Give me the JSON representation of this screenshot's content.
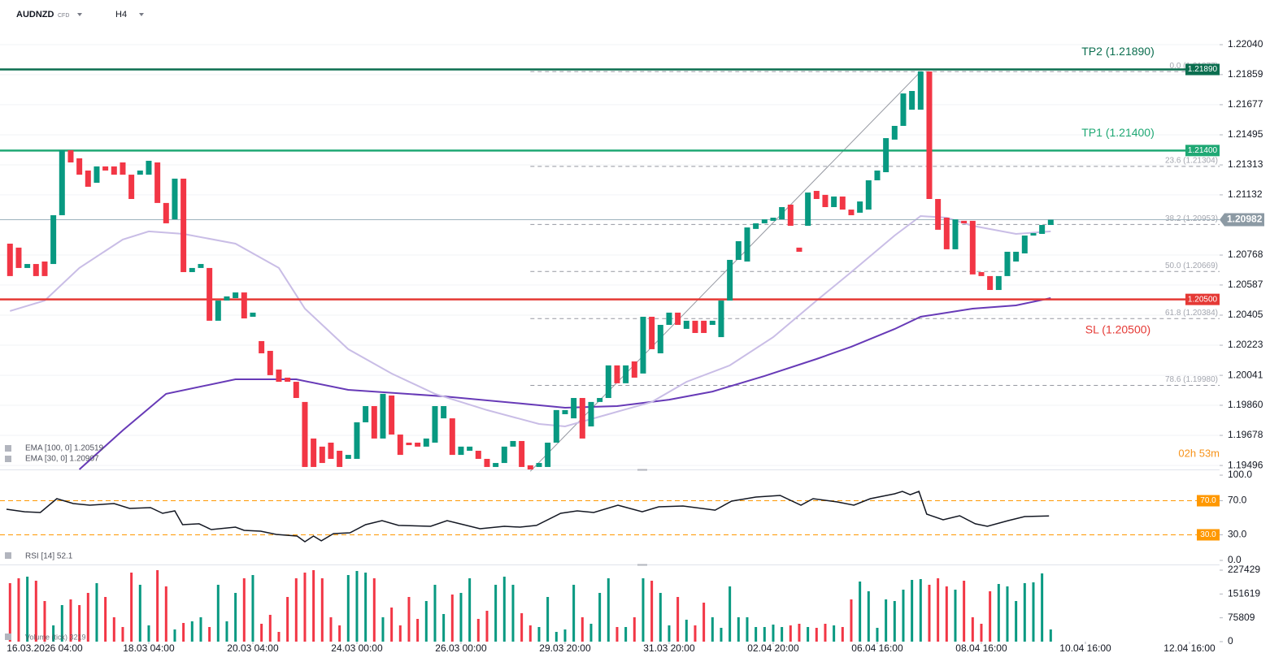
{
  "header": {
    "symbol": "AUDNZD",
    "market": "CFD",
    "timeframe": "H4"
  },
  "chart_data": [
    {
      "type": "candlestick",
      "up_color": "#089981",
      "down_color": "#f23645",
      "grid": true,
      "open": [
        1.20837,
        1.20813,
        1.2069,
        1.20714,
        1.20729,
        1.20714,
        1.21009,
        1.21402,
        1.21353,
        1.21279,
        1.21205,
        1.21304,
        1.21304,
        1.21328,
        1.21254,
        1.21254,
        1.21254,
        1.21328,
        1.21083,
        1.20984,
        1.2123,
        1.20665,
        1.2069,
        1.2069,
        1.20371,
        1.20493,
        1.20508,
        1.20542,
        1.20395,
        1.20248,
        1.20189,
        1.20076,
        1.20027,
        1.20002,
        1.1988,
        1.19659,
        1.1961,
        1.19634,
        1.19585,
        1.19536,
        1.19536,
        1.19757,
        1.19855,
        1.19659,
        1.19919,
        1.19683,
        1.19634,
        1.19634,
        1.1961,
        1.19634,
        1.19781,
        1.19781,
        1.1956,
        1.19585,
        1.19585,
        1.19536,
        1.19487,
        1.19511,
        1.1961,
        1.19644,
        1.19497,
        1.19487,
        1.19487,
        1.19634,
        1.19806,
        1.19781,
        1.19904,
        1.19732,
        1.1988,
        1.19904,
        1.20101,
        1.19993,
        1.20125,
        1.20052,
        1.20395,
        1.20174,
        1.20346,
        1.2042,
        1.20322,
        1.20371,
        1.20371,
        1.20346,
        1.20272,
        1.20493,
        1.20739,
        1.20729,
        1.20926,
        1.2096,
        1.20975,
        1.20984,
        1.21073,
        1.20813,
        1.20945,
        1.21156,
        1.21132,
        1.21058,
        1.21122,
        1.21043,
        1.21024,
        1.21043,
        1.2122,
        1.21269,
        1.21466,
        1.21549,
        1.21647,
        1.21647,
        1.21878,
        1.21107,
        1.20994,
        1.20803,
        1.20975,
        1.20975,
        1.20665,
        1.20641,
        1.20557,
        1.20641,
        1.20729,
        1.20778,
        1.20886,
        1.20896,
        1.2095
      ],
      "close": [
        1.20641,
        1.2069,
        1.20714,
        1.20641,
        1.20641,
        1.21009,
        1.21402,
        1.21328,
        1.21254,
        1.21181,
        1.21304,
        1.21279,
        1.21254,
        1.21254,
        1.21107,
        1.21279,
        1.21338,
        1.21083,
        1.2096,
        1.2123,
        1.20665,
        1.2069,
        1.20714,
        1.20371,
        1.20493,
        1.20518,
        1.20542,
        1.20385,
        1.2042,
        1.20174,
        1.20042,
        1.20002,
        1.20002,
        1.19904,
        1.19487,
        1.19487,
        1.19511,
        1.19536,
        1.19487,
        1.1956,
        1.19757,
        1.19855,
        1.19659,
        1.19929,
        1.19683,
        1.1956,
        1.19619,
        1.1961,
        1.19659,
        1.19855,
        1.19855,
        1.1956,
        1.1961,
        1.1961,
        1.19536,
        1.19487,
        1.19511,
        1.1961,
        1.19644,
        1.19487,
        1.19472,
        1.19511,
        1.19634,
        1.19831,
        1.19831,
        1.19904,
        1.19659,
        1.1988,
        1.19904,
        1.20101,
        1.19993,
        1.20101,
        1.20027,
        1.20395,
        1.20199,
        1.20346,
        1.2042,
        1.20346,
        1.20371,
        1.20297,
        1.20297,
        1.20371,
        1.20493,
        1.20739,
        1.20852,
        1.20935,
        1.2096,
        1.20984,
        1.20994,
        1.21058,
        1.20945,
        1.20788,
        1.21146,
        1.21107,
        1.21058,
        1.21122,
        1.21043,
        1.21009,
        1.21092,
        1.2122,
        1.21279,
        1.21475,
        1.21549,
        1.21745,
        1.2176,
        1.21878,
        1.21107,
        1.20921,
        1.20803,
        1.20984,
        1.2096,
        1.20651,
        1.20641,
        1.20557,
        1.20641,
        1.20788,
        1.20788,
        1.20886,
        1.20901,
        1.2095,
        1.20982
      ],
      "xlim": [
        -1.153,
        139.47
      ],
      "ylim": [
        1.19472,
        1.2231
      ],
      "xticks": [
        {
          "value": 4,
          "label": "16.03.2026 04:00"
        },
        {
          "value": 16,
          "label": "18.03 04:00"
        },
        {
          "value": 28,
          "label": "20.03 04:00"
        },
        {
          "value": 40,
          "label": "24.03 00:00"
        },
        {
          "value": 52,
          "label": "26.03 00:00"
        },
        {
          "value": 64,
          "label": "29.03 20:00"
        },
        {
          "value": 76,
          "label": "31.03 20:00"
        },
        {
          "value": 88,
          "label": "02.04 20:00"
        },
        {
          "value": 100,
          "label": "06.04 16:00"
        },
        {
          "value": 112,
          "label": "08.04 16:00"
        },
        {
          "value": 124,
          "label": "10.04 16:00"
        },
        {
          "value": 136,
          "label": "12.04 16:00"
        }
      ],
      "yticks": [
        {
          "value": 1.2204,
          "label": "1.22040"
        },
        1.21859,
        1.21677,
        1.21495,
        1.21313,
        1.21132,
        1.20768,
        1.20587,
        1.20405,
        1.20223,
        1.20041,
        {
          "value": 1.1986,
          "label": "1.19860"
        },
        1.19678,
        1.19496
      ],
      "series": [
        {
          "name": "EMA [100, 0] 1.20519",
          "color": "#673ab7",
          "x": [
            8,
            13,
            18,
            26,
            33,
            39,
            50,
            59,
            64,
            70,
            76,
            81,
            87,
            93,
            97,
            102,
            105,
            111,
            116,
            120
          ],
          "values": [
            1.19472,
            1.19708,
            1.19929,
            1.20017,
            1.20017,
            1.19953,
            1.19914,
            1.1987,
            1.19845,
            1.19855,
            1.19894,
            1.19943,
            1.20037,
            1.2014,
            1.20214,
            1.20321,
            1.20395,
            1.20444,
            1.20464,
            1.20508
          ]
        },
        {
          "name": "EMA [30, 0] 1.20907",
          "color": "#c9bde6",
          "x": [
            0,
            4,
            8,
            13,
            16,
            20,
            26,
            31,
            34,
            39,
            44,
            49,
            55,
            61,
            64,
            69,
            74,
            78,
            83,
            88,
            93,
            97,
            102,
            105,
            108,
            111,
            116,
            120
          ],
          "values": [
            1.2043,
            1.20493,
            1.2069,
            1.20862,
            1.20911,
            1.20896,
            1.20837,
            1.2069,
            1.20444,
            1.20199,
            1.20052,
            1.19929,
            1.19831,
            1.19747,
            1.19732,
            1.19806,
            1.1988,
            1.20002,
            1.20101,
            1.20272,
            1.20493,
            1.20665,
            1.20886,
            1.21004,
            1.20994,
            1.20945,
            1.20896,
            1.20911
          ]
        }
      ],
      "levels": [
        {
          "name": "TP2 (1.21890)",
          "price": {
            "value": 1.2189,
            "label": "1.21890"
          },
          "color": "#0b6e4f"
        },
        {
          "name": "TP1 (1.21400)",
          "price": {
            "value": 1.214,
            "label": "1.21400"
          },
          "color": "#1fa874"
        },
        {
          "name": "SL (1.20500)",
          "price": {
            "value": 1.205,
            "label": "1.20500"
          },
          "color": "#e53935"
        }
      ],
      "last_price": 1.20982,
      "fib": {
        "x": [
          60,
          105
        ],
        "values": [
          1.19461,
          1.21877
        ],
        "levels": [
          {
            "value": 1.21877,
            "label": "0.0 (1.21877)"
          },
          {
            "value": 1.21304,
            "label": "23.6 (1.21304)"
          },
          {
            "value": 1.20953,
            "label": "38.2 (1.20953)"
          },
          {
            "value": 1.20669,
            "label": "50.0 (1.20669)"
          },
          {
            "value": 1.20384,
            "label": "61.8 (1.20384)"
          },
          {
            "value": 1.1998,
            "label": "78.6 (1.19980)"
          }
        ]
      },
      "timer": "02h 53m"
    },
    {
      "type": "line",
      "name": "RSI [14] 52.1",
      "color": "#131722",
      "x": [
        -0.4,
        1.7,
        3.5,
        5.4,
        7.3,
        9.2,
        12,
        13.8,
        16.2,
        17.6,
        19,
        19.9,
        21.8,
        23.2,
        26,
        27,
        28.9,
        30.7,
        33.1,
        34,
        35,
        35.9,
        37.3,
        39.2,
        41,
        42.9,
        44.8,
        48.5,
        50.4,
        52.3,
        54.2,
        57,
        58.8,
        60.7,
        63.5,
        65.4,
        67.3,
        70.1,
        72.9,
        74.8,
        77.6,
        81.3,
        83.2,
        86,
        88.8,
        91.2,
        92.6,
        95.4,
        97.3,
        99.2,
        102,
        102.9,
        103.8,
        104.8,
        105.7,
        107.6,
        109.5,
        111.3,
        112.7,
        115.1,
        117,
        119.8
      ],
      "values": [
        60.0,
        57.1,
        56.2,
        72.4,
        66.7,
        64.8,
        66.7,
        61.0,
        61.9,
        55.2,
        58.1,
        41.9,
        42.9,
        36.2,
        39.0,
        35.2,
        34.3,
        30.5,
        28.6,
        21.9,
        28.6,
        22.9,
        31.4,
        32.4,
        41.9,
        46.7,
        41.0,
        40.0,
        46.7,
        41.9,
        37.1,
        40.0,
        39.0,
        41.0,
        55.2,
        58.1,
        56.2,
        64.8,
        57.1,
        62.9,
        63.8,
        59.0,
        69.5,
        74.3,
        76.2,
        64.8,
        72.4,
        68.6,
        64.8,
        72.4,
        78.1,
        81.0,
        77.1,
        81.0,
        54.3,
        47.6,
        52.4,
        42.9,
        40.0,
        46.7,
        51.4,
        52.1
      ],
      "xlim": [
        -1.153,
        139.47
      ],
      "ylim": [
        -4.8,
        104.8
      ],
      "yticks": [
        {
          "value": 100,
          "label": "100.0"
        },
        {
          "value": 70,
          "label": "70.0"
        },
        {
          "value": 30,
          "label": "30.0"
        },
        {
          "value": 0,
          "label": "0.0"
        }
      ],
      "bands": [
        {
          "value": 70,
          "label": "70.0"
        },
        {
          "value": 30,
          "label": "30.0"
        }
      ],
      "band_color": "#ff9800"
    },
    {
      "type": "bar",
      "name": "Volume (tick) 3219",
      "up_color": "#089981",
      "down_color": "#f23645",
      "values": [
        186077,
        201583,
        206752,
        193830,
        129220,
        51688,
        116298,
        134389,
        116298,
        155064,
        186077,
        142142,
        77532,
        46519,
        219674,
        180908,
        51688,
        227427,
        175739,
        38766,
        59441,
        64610,
        77532,
        46519,
        180908,
        64610,
        155064,
        201583,
        211921,
        56857,
        85285,
        31013,
        142142,
        201583,
        219674,
        227427,
        201583,
        77532,
        51688,
        211921,
        224843,
        219674,
        201583,
        77532,
        108545,
        51688,
        142142,
        72363,
        129220,
        180908,
        87870,
        149895,
        155064,
        201583,
        72363,
        98207,
        180908,
        206752,
        180908,
        90454,
        51688,
        46519,
        142142,
        31013,
        38766,
        180908,
        77532,
        56857,
        155064,
        201583,
        46519,
        46519,
        77532,
        201583,
        193830,
        155064,
        51688,
        142142,
        69779,
        51688,
        124051,
        77532,
        43935,
        175739,
        77532,
        77532,
        46519,
        46519,
        54272,
        46519,
        51688,
        56857,
        46519,
        43935,
        56857,
        51688,
        46519,
        134389,
        191246,
        160233,
        43935,
        134389,
        129220,
        165402,
        196414,
        198999,
        180908,
        201583,
        175739,
        165402,
        193830,
        77532,
        56857,
        160233,
        183492,
        175739,
        129220,
        186077,
        188661,
        217090,
        38766
      ],
      "xlim": [
        -1.153,
        139.47
      ],
      "ylim": [
        0,
        240350
      ],
      "yticks": [
        227429,
        151619,
        75809,
        0
      ]
    }
  ]
}
